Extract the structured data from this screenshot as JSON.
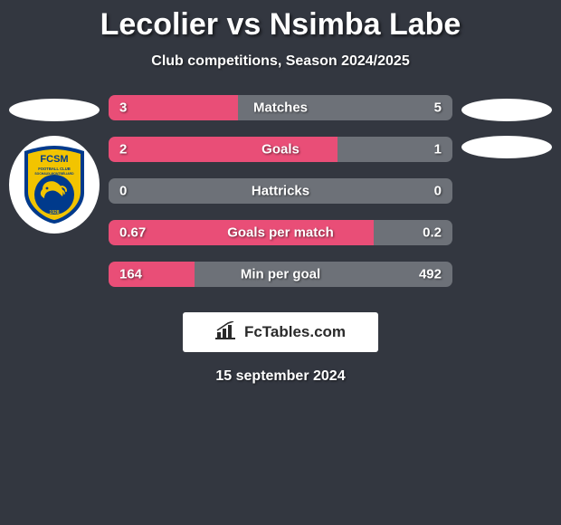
{
  "title": "Lecolier vs Nsimba Labe",
  "subtitle": "Club competitions, Season 2024/2025",
  "date": "15 september 2024",
  "footer_brand": "FcTables.com",
  "colors": {
    "background": "#333740",
    "left_bar": "#e94e77",
    "right_bar": "#6d7178",
    "bar_full_grey": "#6d7178",
    "text": "#ffffff"
  },
  "club_badge": {
    "text_top": "FCSM",
    "shield_primary": "#f2c400",
    "shield_secondary": "#003a8c"
  },
  "bars": [
    {
      "label": "Matches",
      "left": "3",
      "right": "5",
      "left_pct": 37.5,
      "right_pct": 62.5,
      "left_color": "#e94e77",
      "right_color": "#6d7178"
    },
    {
      "label": "Goals",
      "left": "2",
      "right": "1",
      "left_pct": 66.7,
      "right_pct": 33.3,
      "left_color": "#e94e77",
      "right_color": "#6d7178"
    },
    {
      "label": "Hattricks",
      "left": "0",
      "right": "0",
      "left_pct": 0,
      "right_pct": 100,
      "left_color": "#e94e77",
      "right_color": "#6d7178"
    },
    {
      "label": "Goals per match",
      "left": "0.67",
      "right": "0.2",
      "left_pct": 77.0,
      "right_pct": 23.0,
      "left_color": "#e94e77",
      "right_color": "#6d7178"
    },
    {
      "label": "Min per goal",
      "left": "164",
      "right": "492",
      "left_pct": 25.0,
      "right_pct": 75.0,
      "left_color": "#e94e77",
      "right_color": "#6d7178"
    }
  ]
}
